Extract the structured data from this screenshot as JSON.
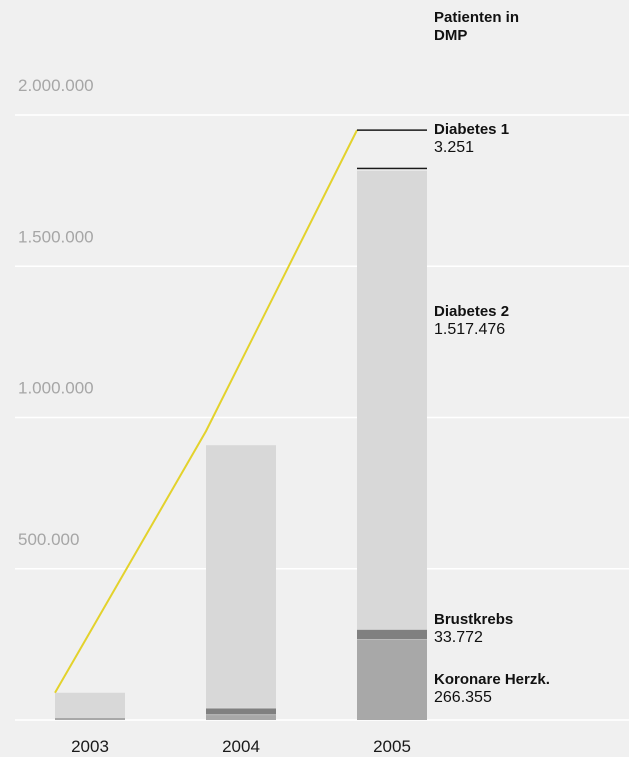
{
  "chart_data": {
    "type": "bar",
    "stacked": true,
    "legend_title": "Patienten in DMP",
    "legend_title_lines": [
      "Patienten in",
      "DMP"
    ],
    "categories": [
      "2003",
      "2004",
      "2005"
    ],
    "ylim": [
      0,
      2000000
    ],
    "y_ticks": [
      500000,
      1000000,
      1500000,
      2000000
    ],
    "y_tick_labels": [
      "500.000",
      "1.000.000",
      "1.500.000",
      "2.000.000"
    ],
    "grid": true,
    "series": [
      {
        "name": "Koronare Herzk.",
        "color": "#a8a8a8",
        "values": [
          0,
          18000,
          266355
        ],
        "value_label": "266.355"
      },
      {
        "name": "Brustkrebs",
        "color": "#808080",
        "values": [
          0,
          22000,
          33772
        ],
        "value_label": "33.772"
      },
      {
        "name": "Diabetes 2",
        "color": "#d8d8d8",
        "values": [
          90000,
          870000,
          1517476
        ],
        "value_label": "1.517.476"
      },
      {
        "name": "Diabetes 1",
        "color": "#1a1a1a",
        "values": [
          0,
          0,
          3251
        ],
        "value_label": "3.251"
      }
    ],
    "line": {
      "color": "#e3d22c",
      "values": [
        90000,
        955000,
        1950000
      ]
    }
  }
}
